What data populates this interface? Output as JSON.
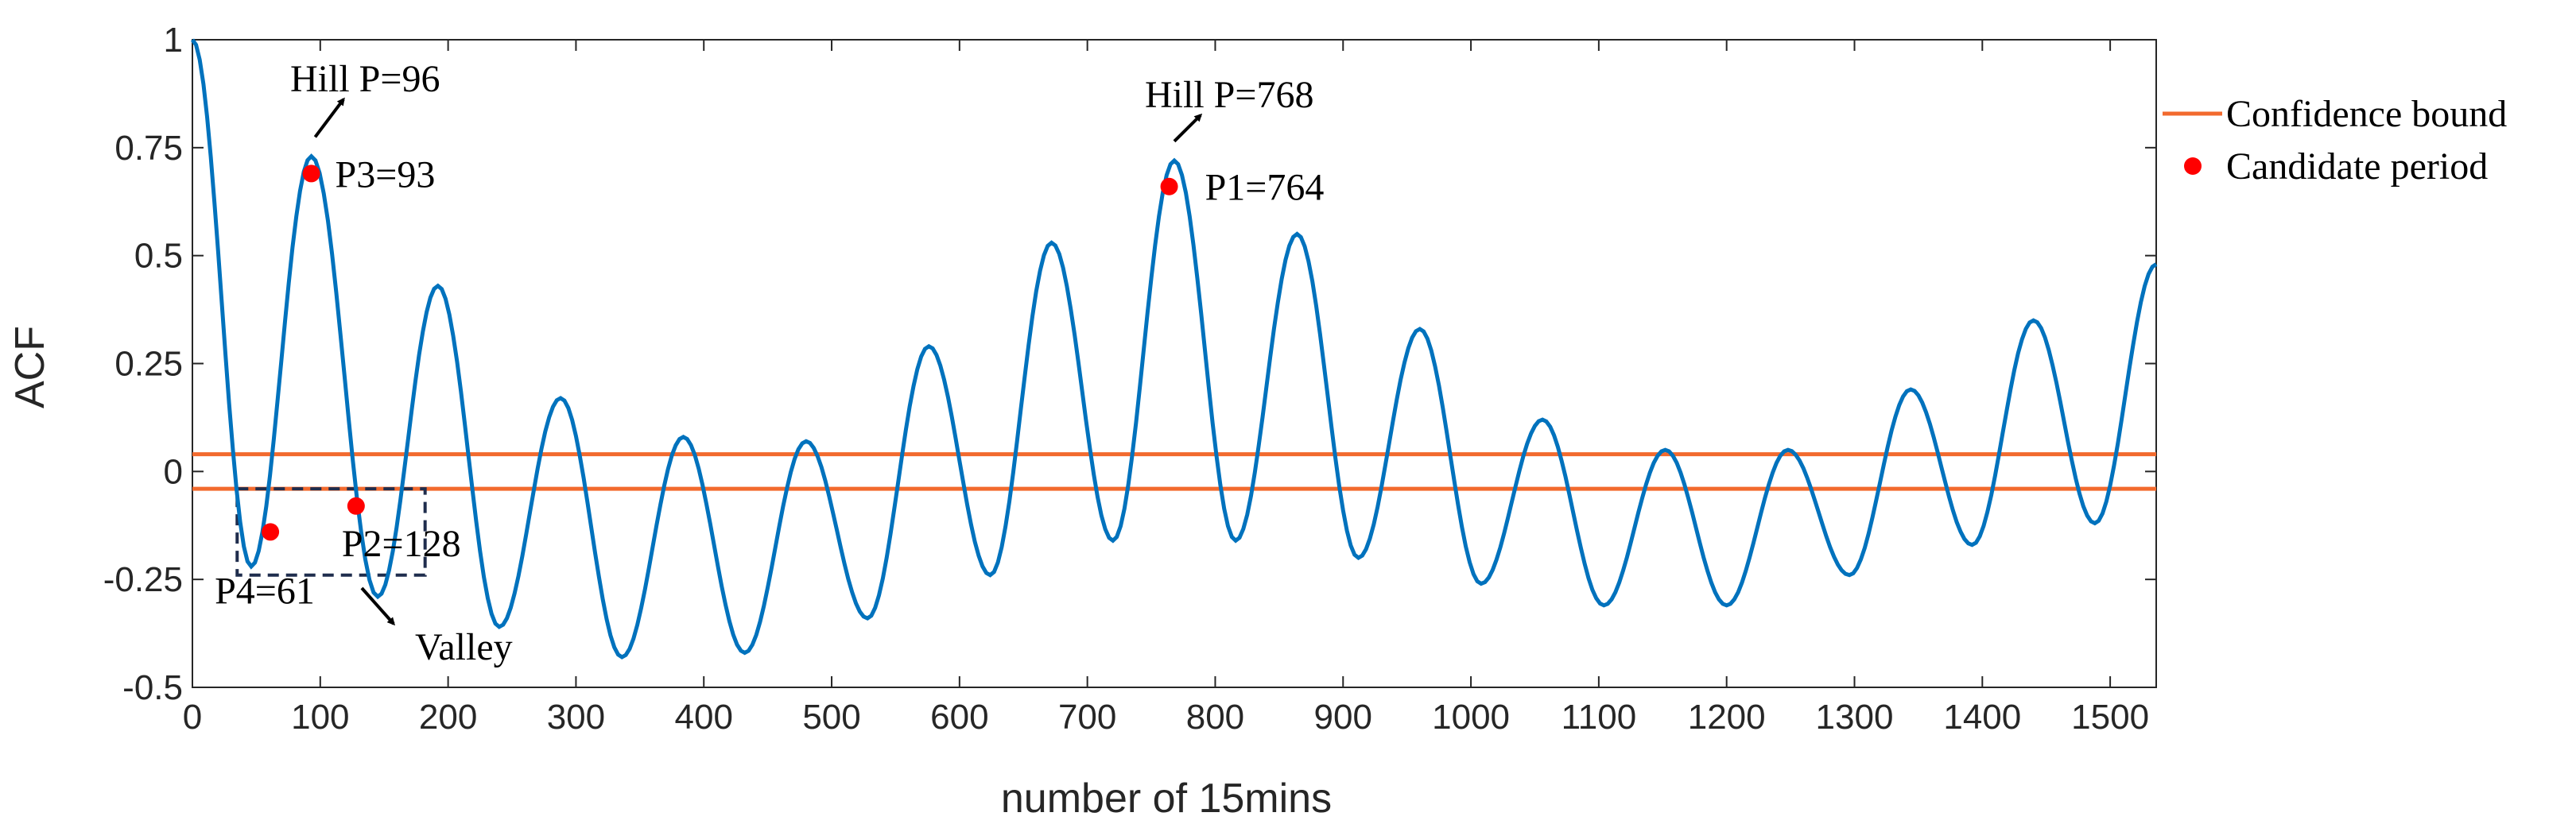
{
  "chart_data": {
    "type": "line",
    "title": "",
    "xlabel": "number of 15mins",
    "ylabel": "ACF",
    "xlim": [
      0,
      1536
    ],
    "ylim": [
      -0.5,
      1
    ],
    "xticks": [
      0,
      100,
      200,
      300,
      400,
      500,
      600,
      700,
      800,
      900,
      1000,
      1100,
      1200,
      1300,
      1400,
      1500
    ],
    "xtick_labels": [
      "0",
      "100",
      "200",
      "300",
      "400",
      "500",
      "600",
      "700",
      "800",
      "900",
      "1000",
      "1100",
      "1200",
      "1300",
      "1400",
      "1500"
    ],
    "yticks": [
      -0.5,
      -0.25,
      0,
      0.25,
      0.5,
      0.75,
      1
    ],
    "ytick_labels": [
      "-0.5",
      "-0.25",
      "0",
      "0.25",
      "0.5",
      "0.75",
      "1"
    ],
    "grid": false,
    "series": [
      {
        "name": "ACF",
        "color": "#0072BD",
        "points": [
          [
            0,
            1.0
          ],
          [
            46,
            -0.22
          ],
          [
            93,
            0.73
          ],
          [
            145,
            -0.29
          ],
          [
            192,
            0.43
          ],
          [
            240,
            -0.36
          ],
          [
            288,
            0.17
          ],
          [
            336,
            -0.43
          ],
          [
            384,
            0.08
          ],
          [
            432,
            -0.42
          ],
          [
            480,
            0.07
          ],
          [
            528,
            -0.34
          ],
          [
            576,
            0.29
          ],
          [
            624,
            -0.24
          ],
          [
            672,
            0.53
          ],
          [
            720,
            -0.16
          ],
          [
            768,
            0.72
          ],
          [
            816,
            -0.16
          ],
          [
            864,
            0.55
          ],
          [
            912,
            -0.2
          ],
          [
            960,
            0.33
          ],
          [
            1008,
            -0.26
          ],
          [
            1056,
            0.12
          ],
          [
            1104,
            -0.31
          ],
          [
            1152,
            0.05
          ],
          [
            1200,
            -0.31
          ],
          [
            1248,
            0.05
          ],
          [
            1296,
            -0.24
          ],
          [
            1344,
            0.19
          ],
          [
            1392,
            -0.17
          ],
          [
            1440,
            0.35
          ],
          [
            1488,
            -0.12
          ],
          [
            1536,
            0.48
          ]
        ]
      }
    ],
    "confidence_bound": {
      "name": "Confidence bound",
      "color": "#F26A2E",
      "values": [
        0.04,
        -0.04
      ]
    },
    "candidate_periods": {
      "name": "Candidate period",
      "color": "#FF0000",
      "points": [
        {
          "label": "P1=764",
          "x": 764,
          "y": 0.66
        },
        {
          "label": "P2=128",
          "x": 128,
          "y": -0.08
        },
        {
          "label": "P3=93",
          "x": 93,
          "y": 0.69
        },
        {
          "label": "P4=61",
          "x": 61,
          "y": -0.14
        }
      ]
    },
    "annotations": [
      {
        "text": "Hill P=96",
        "x": 96,
        "y": 0.76
      },
      {
        "text": "Hill P=768",
        "x": 768,
        "y": 0.75
      },
      {
        "text": "Valley",
        "x": 150,
        "y": -0.3
      }
    ],
    "valley_box": {
      "x": [
        35,
        182
      ],
      "y": [
        -0.24,
        -0.04
      ]
    },
    "legend": {
      "position": "right-outside",
      "entries": [
        "Confidence bound",
        "Candidate period"
      ]
    }
  }
}
